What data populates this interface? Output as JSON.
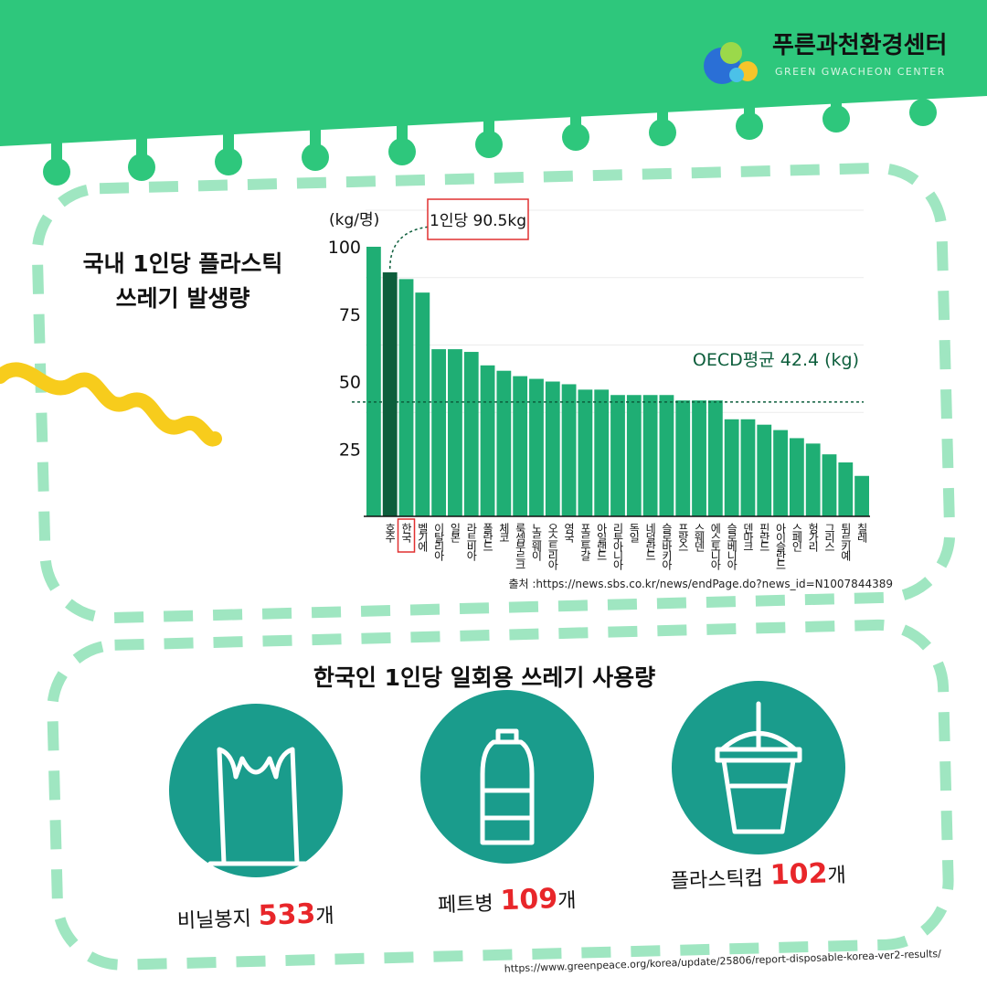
{
  "header": {
    "name": "푸른과천환경센터",
    "subtitle": "GREEN GWACHEON CENTER"
  },
  "chart_data": {
    "type": "bar",
    "title": [
      "국내 1인당 플라스틱",
      "쓰레기 발생량"
    ],
    "y_label": "(kg/명)",
    "categories": [
      "호주",
      "한국",
      "벨기에",
      "이탈리아",
      "일본",
      "라트비아",
      "폴란드",
      "체코",
      "룩셈부르크",
      "노르웨이",
      "오스트리아",
      "영국",
      "포르투갈",
      "아일랜드",
      "리투아니아",
      "독일",
      "네덜란드",
      "슬로바키아",
      "프랑스",
      "스웨덴",
      "에스토니아",
      "슬로베니아",
      "덴마크",
      "핀란드",
      "아이슬란드",
      "스페인",
      "헝가리",
      "그리스",
      "튀르키예",
      "칠레",
      null
    ],
    "values": [
      100,
      90.5,
      88,
      83,
      62,
      62,
      61,
      56,
      54,
      52,
      51,
      50,
      49,
      47,
      47,
      45,
      45,
      45,
      45,
      43,
      43,
      43,
      36,
      36,
      34,
      32,
      29,
      27,
      23,
      20,
      15
    ],
    "color": "#1fae74",
    "highlight_category": "한국",
    "highlight_color": "#0d5e3c",
    "ylim": [
      0,
      100
    ],
    "yticks": [
      25,
      50,
      75,
      100
    ],
    "grid": true,
    "reference_line": {
      "value": 42.4,
      "label": "OECD평균 42.4 (kg)"
    },
    "annotation": {
      "label": "1인당 90.5kg",
      "category": "한국"
    },
    "source": "출처 :https://news.sbs.co.kr/news/endPage.do?news_id=N1007844389"
  },
  "usage": {
    "title": "한국인 1인당 일회용 쓰레기 사용량",
    "items": [
      {
        "name": "비닐봉지",
        "count": "533",
        "unit": "개"
      },
      {
        "name": "페트병",
        "count": "109",
        "unit": "개"
      },
      {
        "name": "플라스틱컵",
        "count": "102",
        "unit": "개"
      }
    ],
    "source": "https://www.greenpeace.org/korea/update/25806/report-disposable-korea-ver2-results/"
  }
}
